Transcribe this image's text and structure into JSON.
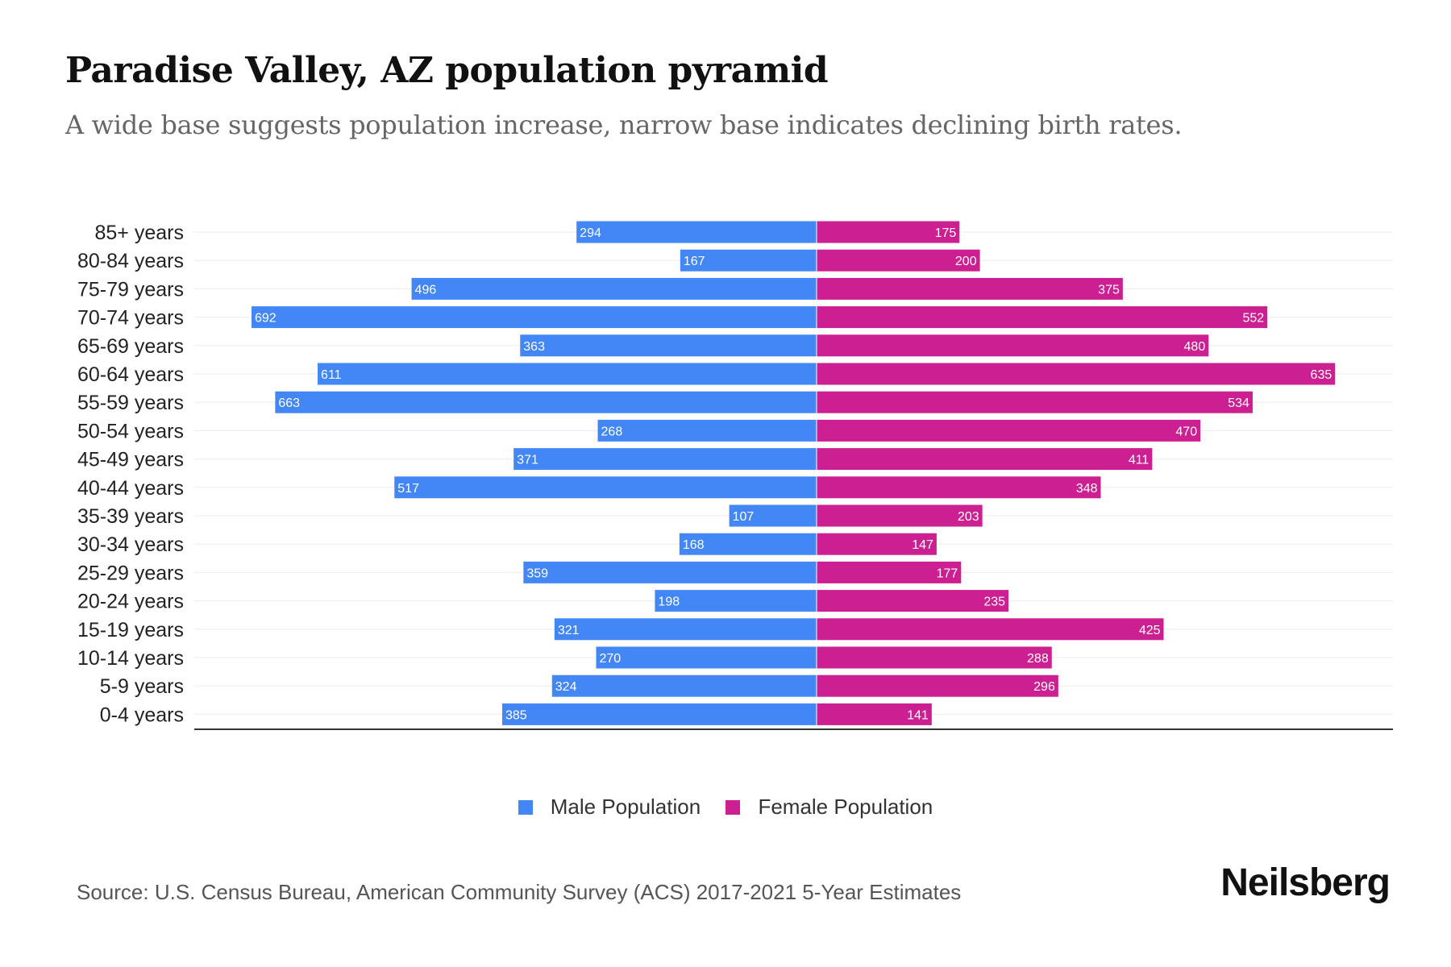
{
  "title": "Paradise Valley, AZ population pyramid",
  "subtitle": "A wide base suggests population increase, narrow base indicates declining birth rates.",
  "source": "Source: U.S. Census Bureau, American Community Survey (ACS) 2017-2021 5-Year Estimates",
  "logo": "Neilsberg",
  "colors": {
    "male": "#4287f5",
    "female": "#cc1f91"
  },
  "chart_data": {
    "type": "bar",
    "orientation": "horizontal-pyramid",
    "categories": [
      "85+ years",
      "80-84 years",
      "75-79 years",
      "70-74 years",
      "65-69 years",
      "60-64 years",
      "55-59 years",
      "50-54 years",
      "45-49 years",
      "40-44 years",
      "35-39 years",
      "30-34 years",
      "25-29 years",
      "20-24 years",
      "15-19 years",
      "10-14 years",
      "5-9 years",
      "0-4 years"
    ],
    "series": [
      {
        "name": "Male Population",
        "values": [
          294,
          167,
          496,
          692,
          363,
          611,
          663,
          268,
          371,
          517,
          107,
          168,
          359,
          198,
          321,
          270,
          324,
          385
        ]
      },
      {
        "name": "Female Population",
        "values": [
          175,
          200,
          375,
          552,
          480,
          635,
          534,
          470,
          411,
          348,
          203,
          147,
          177,
          235,
          425,
          288,
          296,
          141
        ]
      }
    ],
    "legend": "bottom-center",
    "grid": true
  }
}
